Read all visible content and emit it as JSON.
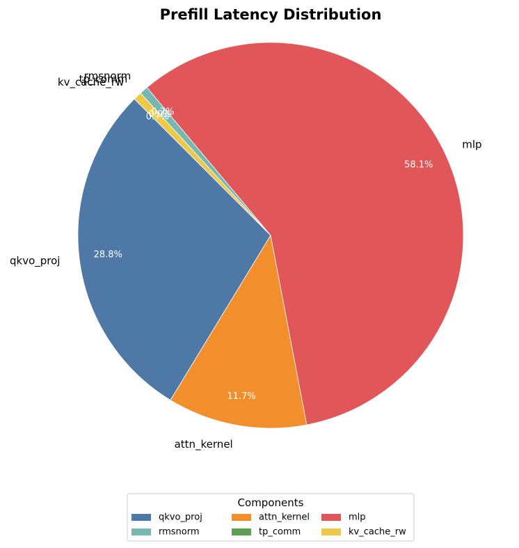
{
  "chart_data": {
    "type": "pie",
    "title": "Prefill Latency Distribution",
    "legend_title": "Components",
    "legend_position": "bottom",
    "start_angle_deg": 135,
    "direction": "counterclockwise",
    "slices": [
      {
        "label": "qkvo_proj",
        "value": 28.8,
        "pct_label": "28.8%",
        "color": "#4e79a7"
      },
      {
        "label": "attn_kernel",
        "value": 11.7,
        "pct_label": "11.7%",
        "color": "#f28e2b"
      },
      {
        "label": "mlp",
        "value": 58.1,
        "pct_label": "58.1%",
        "color": "#e15759"
      },
      {
        "label": "rmsnorm",
        "value": 0.7,
        "pct_label": "0.7%",
        "color": "#76b7b2"
      },
      {
        "label": "tp_comm",
        "value": 0.0,
        "pct_label": "0.0%",
        "color": "#59a14f"
      },
      {
        "label": "kv_cache_rw",
        "value": 0.7,
        "pct_label": "0.7%",
        "color": "#edc948"
      }
    ]
  }
}
